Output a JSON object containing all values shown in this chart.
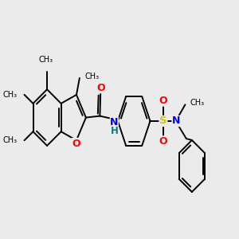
{
  "background_color": "#ebebeb",
  "bond_color": "#000000",
  "bond_width": 1.4,
  "atom_colors": {
    "O": "#ff0000",
    "N": "#0000ff",
    "S": "#cccc00",
    "H_teal": "#008080"
  },
  "font_size": 8.5,
  "fig_width": 3.0,
  "fig_height": 3.0,
  "dpi": 100,
  "xlim": [
    0,
    10
  ],
  "ylim": [
    2,
    8
  ]
}
